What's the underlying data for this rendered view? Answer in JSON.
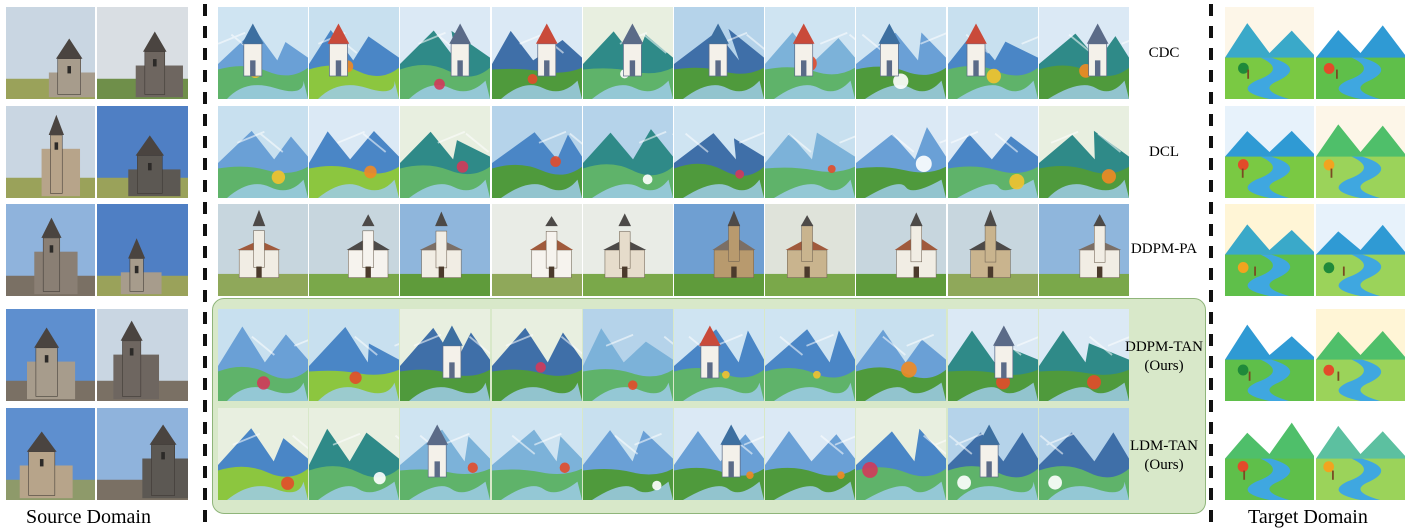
{
  "figure": {
    "source_caption": "Source Domain",
    "target_caption": "Target Domain",
    "method_rows": [
      {
        "label": "CDC",
        "sub": ""
      },
      {
        "label": "DCL",
        "sub": ""
      },
      {
        "label": "DDPM-PA",
        "sub": ""
      },
      {
        "label": "DDPM-TAN",
        "sub": "(Ours)"
      },
      {
        "label": "LDM-TAN",
        "sub": "(Ours)"
      }
    ],
    "palette": {
      "sky": "#7fb2e3",
      "grass": "#6bb04a",
      "mountain": "#4a86c6",
      "stone": "#8a7f74",
      "highlight_fill": "#d8e8c9",
      "highlight_border": "#8fb57a"
    }
  }
}
